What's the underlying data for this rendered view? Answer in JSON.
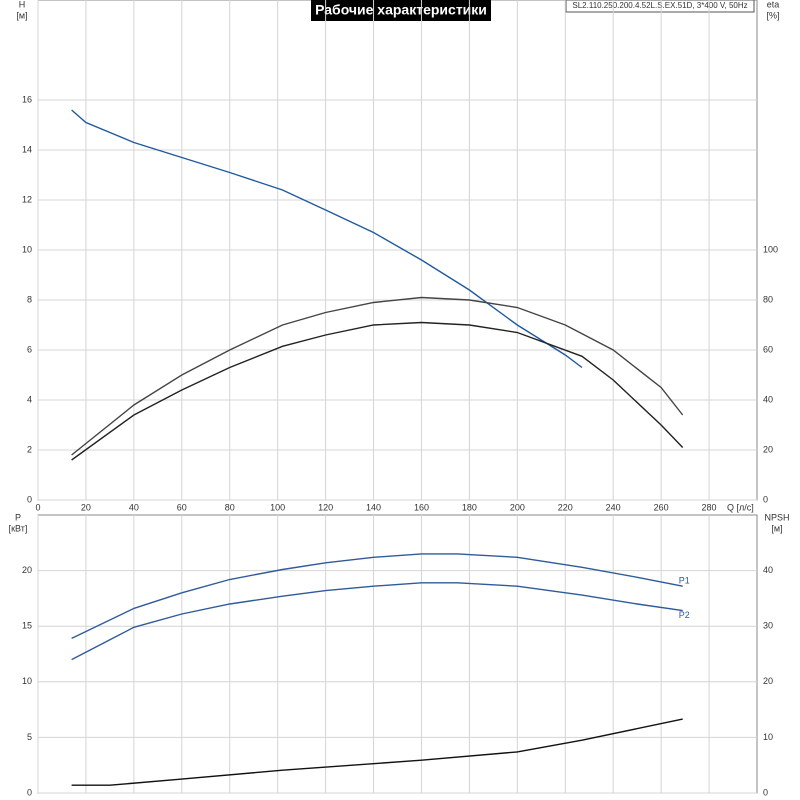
{
  "chart_data": [
    {
      "type": "line",
      "title": "Рабочие характеристики",
      "subtitle": "SL2.110.250.200.4.52L.S.EX.51D, 3*400 V, 50Hz",
      "x_label": "Q [л/с]",
      "y_label": "H",
      "y_unit": "[м]",
      "y2_label": "eta",
      "y2_unit": "[%]",
      "xlim": [
        0,
        300
      ],
      "xticks": [
        0,
        20,
        40,
        60,
        80,
        100,
        120,
        140,
        160,
        180,
        200,
        220,
        240,
        260,
        280
      ],
      "ylim": [
        0,
        20
      ],
      "yticks": [
        0,
        2,
        4,
        6,
        8,
        10,
        12,
        14,
        16
      ],
      "y2lim": [
        0,
        200
      ],
      "y2ticks": [
        0,
        20,
        40,
        60,
        80,
        100
      ],
      "grid": true,
      "series": [
        {
          "color": "#1f5aa0",
          "x": [
            14,
            20,
            40,
            60,
            80,
            102,
            120,
            140,
            160,
            180,
            200,
            220,
            227
          ],
          "values": [
            15.6,
            15.1,
            14.3,
            13.7,
            13.1,
            12.4,
            11.6,
            10.7,
            9.6,
            8.4,
            7.0,
            5.8,
            5.3
          ]
        },
        {
          "color": "#444444",
          "axis": "y2",
          "x": [
            14,
            40,
            60,
            80,
            102,
            120,
            140,
            160,
            180,
            200,
            220,
            240,
            260,
            269
          ],
          "values": [
            18,
            38,
            50,
            60,
            70,
            75,
            79,
            81,
            80,
            77,
            70,
            60,
            45,
            34
          ]
        },
        {
          "color": "#222222",
          "axis": "y2",
          "x": [
            14,
            40,
            60,
            80,
            102,
            120,
            140,
            160,
            180,
            200,
            227,
            240,
            260,
            269
          ],
          "values": [
            16,
            34,
            44,
            53,
            61.5,
            66,
            70,
            71,
            70,
            67,
            57.5,
            48,
            30,
            21
          ]
        }
      ]
    },
    {
      "type": "line",
      "y_label": "P",
      "y_unit": "[кВт]",
      "y2_label": "NPSH",
      "y2_unit": "[м]",
      "ylim": [
        0,
        25
      ],
      "yticks": [
        0,
        5,
        10,
        15,
        20
      ],
      "y2lim": [
        0,
        50
      ],
      "y2ticks": [
        0,
        10,
        20,
        30,
        40
      ],
      "grid": true,
      "series": [
        {
          "name": "P1",
          "color": "#2f5b9a",
          "x": [
            14,
            40,
            60,
            80,
            102,
            120,
            140,
            160,
            175,
            200,
            227,
            250,
            269
          ],
          "values": [
            13.9,
            16.6,
            18,
            19.2,
            20.1,
            20.7,
            21.2,
            21.5,
            21.5,
            21.2,
            20.3,
            19.4,
            18.6
          ]
        },
        {
          "name": "P2",
          "color": "#2f5b9a",
          "x": [
            14,
            40,
            60,
            80,
            102,
            120,
            140,
            160,
            175,
            200,
            227,
            250,
            269
          ],
          "values": [
            12.0,
            14.9,
            16.1,
            17,
            17.7,
            18.2,
            18.6,
            18.9,
            18.9,
            18.6,
            17.8,
            17.0,
            16.4
          ]
        },
        {
          "color": "#111111",
          "axis": "y2",
          "x": [
            14,
            30,
            60,
            102,
            160,
            200,
            227,
            269
          ],
          "values": [
            1.4,
            1.4,
            2.5,
            4.1,
            5.9,
            7.4,
            9.5,
            13.3
          ]
        }
      ]
    }
  ]
}
